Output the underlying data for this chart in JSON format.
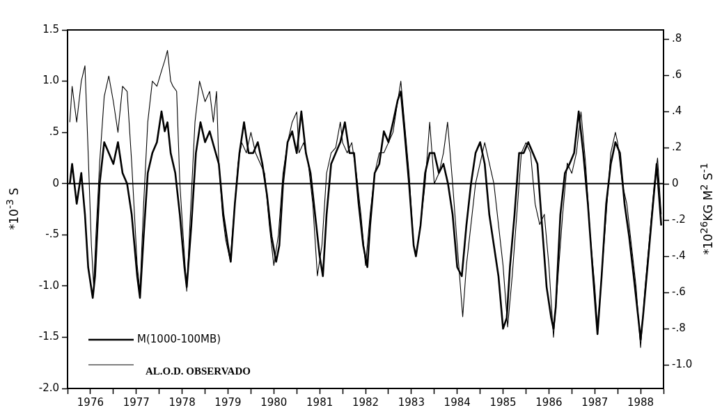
{
  "chart_data": {
    "type": "line",
    "ylabel": "*10$^{-3}$ S",
    "y2label": "*10$^{26}$KG M$^{2}$ S$^{-1}$",
    "xlim": [
      1976,
      1989
    ],
    "xticks": [
      {
        "value": 1976,
        "label": null
      },
      {
        "value": 1976.5,
        "label": "1976"
      },
      {
        "value": 1977,
        "label": null
      },
      {
        "value": 1977.5,
        "label": "1977"
      },
      {
        "value": 1978,
        "label": null
      },
      {
        "value": 1978.5,
        "label": "1978"
      },
      {
        "value": 1979,
        "label": null
      },
      {
        "value": 1979.5,
        "label": "1979"
      },
      {
        "value": 1980,
        "label": null
      },
      {
        "value": 1980.5,
        "label": "1980"
      },
      {
        "value": 1981,
        "label": null
      },
      {
        "value": 1981.5,
        "label": "1981"
      },
      {
        "value": 1982,
        "label": null
      },
      {
        "value": 1982.5,
        "label": "1982"
      },
      {
        "value": 1983,
        "label": null
      },
      {
        "value": 1983.5,
        "label": "1983"
      },
      {
        "value": 1984,
        "label": null
      },
      {
        "value": 1984.5,
        "label": "1984"
      },
      {
        "value": 1985,
        "label": null
      },
      {
        "value": 1985.5,
        "label": "1985"
      },
      {
        "value": 1986,
        "label": null
      },
      {
        "value": 1986.5,
        "label": "1986"
      },
      {
        "value": 1987,
        "label": null
      },
      {
        "value": 1987.5,
        "label": "1987"
      },
      {
        "value": 1988,
        "label": null
      },
      {
        "value": 1988.5,
        "label": "1988"
      },
      {
        "value": 1989,
        "label": null
      }
    ],
    "ylim": [
      -2.0,
      1.5
    ],
    "yticks": [
      {
        "value": -2.0,
        "label": "-2.0"
      },
      {
        "value": -1.5,
        "label": "-1.5"
      },
      {
        "value": -1.0,
        "label": "-1.0"
      },
      {
        "value": -0.5,
        "label": "-.5"
      },
      0,
      {
        "value": 0.5,
        "label": ".5"
      },
      {
        "value": 1.0,
        "label": "1.0"
      },
      {
        "value": 1.5,
        "label": "1.5"
      }
    ],
    "y2lim": [
      -1.13,
      0.85
    ],
    "y2ticks": [
      {
        "value": -1.0,
        "label": "-1.0"
      },
      {
        "value": -0.8,
        "label": "-.8"
      },
      {
        "value": -0.6,
        "label": "-.6"
      },
      {
        "value": -0.4,
        "label": "-.4"
      },
      {
        "value": -0.2,
        "label": "-.2"
      },
      0,
      {
        "value": 0.2,
        "label": ".2"
      },
      {
        "value": 0.4,
        "label": ".4"
      },
      {
        "value": 0.6,
        "label": ".6"
      },
      {
        "value": 0.8,
        "label": ".8"
      }
    ],
    "grid": false,
    "legend": "bottom left",
    "marker": "none",
    "line_style": "solid",
    "ref_lines": [
      {
        "axis": "y",
        "value": 0,
        "color": "#000000"
      }
    ],
    "series": [
      {
        "name": "M(1000-100MB)",
        "color": "#000000",
        "axis": "y2",
        "x": [
          1976.05,
          1976.1,
          1976.2,
          1976.3,
          1976.38,
          1976.45,
          1976.55,
          1976.6,
          1976.7,
          1976.8,
          1976.9,
          1977.0,
          1977.1,
          1977.2,
          1977.3,
          1977.4,
          1977.52,
          1977.58,
          1977.66,
          1977.75,
          1977.85,
          1977.95,
          1978.05,
          1978.12,
          1978.18,
          1978.25,
          1978.35,
          1978.45,
          1978.55,
          1978.6,
          1978.7,
          1978.8,
          1978.9,
          1979.0,
          1979.1,
          1979.2,
          1979.3,
          1979.4,
          1979.5,
          1979.56,
          1979.65,
          1979.75,
          1979.85,
          1979.95,
          1980.05,
          1980.15,
          1980.25,
          1980.35,
          1980.45,
          1980.55,
          1980.62,
          1980.7,
          1980.8,
          1980.9,
          1981.0,
          1981.1,
          1981.2,
          1981.3,
          1981.4,
          1981.5,
          1981.57,
          1981.65,
          1981.75,
          1981.85,
          1981.95,
          1982.05,
          1982.15,
          1982.25,
          1982.35,
          1982.45,
          1982.54,
          1982.6,
          1982.7,
          1982.8,
          1982.9,
          1983.0,
          1983.1,
          1983.2,
          1983.27,
          1983.35,
          1983.45,
          1983.55,
          1983.6,
          1983.7,
          1983.8,
          1983.9,
          1984.0,
          1984.1,
          1984.2,
          1984.3,
          1984.4,
          1984.5,
          1984.6,
          1984.7,
          1984.8,
          1984.9,
          1985.0,
          1985.1,
          1985.2,
          1985.3,
          1985.4,
          1985.5,
          1985.58,
          1985.65,
          1985.75,
          1985.85,
          1985.95,
          1986.05,
          1986.15,
          1986.25,
          1986.35,
          1986.45,
          1986.55,
          1986.6,
          1986.65,
          1986.75,
          1986.85,
          1986.95,
          1987.05,
          1987.15,
          1987.25,
          1987.35,
          1987.45,
          1987.5,
          1987.56,
          1987.65,
          1987.75,
          1987.85,
          1987.95,
          1988.05,
          1988.15,
          1988.25,
          1988.35,
          1988.45,
          1988.5,
          1988.55,
          1988.65,
          1988.75,
          1988.85,
          1988.95
        ],
        "values": [
          0,
          0.11,
          -0.11,
          0.06,
          -0.17,
          -0.46,
          -0.63,
          -0.51,
          0,
          0.23,
          0.17,
          0.11,
          0.23,
          0.06,
          0,
          -0.17,
          -0.51,
          -0.63,
          -0.29,
          0.06,
          0.17,
          0.23,
          0.4,
          0.29,
          0.34,
          0.17,
          0.06,
          -0.17,
          -0.46,
          -0.57,
          -0.23,
          0.17,
          0.34,
          0.23,
          0.29,
          0.2,
          0.11,
          -0.17,
          -0.34,
          -0.43,
          -0.11,
          0.17,
          0.34,
          0.17,
          0.17,
          0.23,
          0.11,
          -0.06,
          -0.29,
          -0.43,
          -0.34,
          0,
          0.23,
          0.29,
          0.17,
          0.4,
          0.17,
          0.06,
          -0.17,
          -0.4,
          -0.51,
          -0.17,
          0.11,
          0.17,
          0.23,
          0.34,
          0.17,
          0.17,
          -0.11,
          -0.34,
          -0.46,
          -0.23,
          0.06,
          0.11,
          0.29,
          0.23,
          0.34,
          0.46,
          0.51,
          0.29,
          0,
          -0.34,
          -0.4,
          -0.23,
          0.06,
          0.17,
          0.17,
          0.06,
          0.11,
          0,
          -0.17,
          -0.46,
          -0.51,
          -0.23,
          0,
          0.17,
          0.23,
          0.11,
          -0.17,
          -0.34,
          -0.51,
          -0.8,
          -0.74,
          -0.46,
          -0.17,
          0.17,
          0.17,
          0.23,
          0.17,
          0.11,
          -0.23,
          -0.57,
          -0.74,
          -0.8,
          -0.68,
          -0.17,
          0.06,
          0.11,
          0.17,
          0.4,
          0.17,
          -0.11,
          -0.46,
          -0.63,
          -0.83,
          -0.51,
          -0.11,
          0.11,
          0.23,
          0.17,
          -0.11,
          -0.29,
          -0.51,
          -0.74,
          -0.86,
          -0.74,
          -0.46,
          -0.17,
          0.11,
          -0.23
        ]
      },
      {
        "name": "AL.O.D. OBSERVADO",
        "color": "#000000",
        "x": [
          1976.05,
          1976.1,
          1976.2,
          1976.3,
          1976.38,
          1976.45,
          1976.52,
          1976.57,
          1976.62,
          1976.7,
          1976.8,
          1976.9,
          1977.0,
          1977.1,
          1977.2,
          1977.3,
          1977.4,
          1977.52,
          1977.58,
          1977.66,
          1977.75,
          1977.85,
          1977.95,
          1978.05,
          1978.12,
          1978.18,
          1978.25,
          1978.3,
          1978.38,
          1978.45,
          1978.55,
          1978.6,
          1978.68,
          1978.78,
          1978.88,
          1979.0,
          1979.1,
          1979.18,
          1979.25,
          1979.3,
          1979.38,
          1979.45,
          1979.55,
          1979.63,
          1979.72,
          1979.8,
          1979.9,
          1980.0,
          1980.1,
          1980.2,
          1980.3,
          1980.4,
          1980.5,
          1980.6,
          1980.7,
          1980.8,
          1980.9,
          1981.0,
          1981.05,
          1981.15,
          1981.25,
          1981.35,
          1981.45,
          1981.55,
          1981.65,
          1981.75,
          1981.85,
          1981.95,
          1982.0,
          1982.1,
          1982.2,
          1982.3,
          1982.4,
          1982.5,
          1982.6,
          1982.7,
          1982.8,
          1982.9,
          1983.0,
          1983.1,
          1983.2,
          1983.27,
          1983.35,
          1983.45,
          1983.55,
          1983.6,
          1983.7,
          1983.8,
          1983.9,
          1984.0,
          1984.1,
          1984.2,
          1984.29,
          1984.4,
          1984.5,
          1984.62,
          1984.7,
          1984.8,
          1984.9,
          1985.0,
          1985.1,
          1985.2,
          1985.3,
          1985.4,
          1985.5,
          1985.6,
          1985.7,
          1985.8,
          1985.9,
          1986.0,
          1986.1,
          1986.2,
          1986.3,
          1986.4,
          1986.5,
          1986.6,
          1986.7,
          1986.8,
          1986.9,
          1987.0,
          1987.1,
          1987.2,
          1987.3,
          1987.4,
          1987.5,
          1987.56,
          1987.65,
          1987.75,
          1987.85,
          1987.95,
          1988.0,
          1988.1,
          1988.2,
          1988.3,
          1988.4,
          1988.5,
          1988.6,
          1988.7,
          1988.8,
          1988.87,
          1988.95
        ],
        "values": [
          0.6,
          0.95,
          0.6,
          1.0,
          1.15,
          0.3,
          -0.6,
          -1.0,
          -0.5,
          0.2,
          0.85,
          1.05,
          0.8,
          0.5,
          0.95,
          0.9,
          0.2,
          -0.8,
          -1.05,
          -0.2,
          0.6,
          1.0,
          0.95,
          1.1,
          1.2,
          1.3,
          1.0,
          0.95,
          0.9,
          0.0,
          -0.7,
          -1.05,
          -0.3,
          0.6,
          1.0,
          0.8,
          0.9,
          0.6,
          0.9,
          0.2,
          -0.3,
          -0.55,
          -0.75,
          -0.3,
          0.2,
          0.4,
          0.3,
          0.5,
          0.3,
          0.2,
          0.1,
          -0.4,
          -0.8,
          -0.5,
          0.1,
          0.4,
          0.6,
          0.7,
          0.3,
          0.4,
          0.2,
          -0.2,
          -0.9,
          -0.6,
          0.1,
          0.3,
          0.35,
          0.6,
          0.4,
          0.3,
          0.4,
          0.1,
          -0.3,
          -0.8,
          -0.3,
          0.1,
          0.3,
          0.3,
          0.4,
          0.5,
          0.8,
          1.0,
          0.6,
          0.1,
          -0.6,
          -0.7,
          -0.4,
          0.0,
          0.6,
          0.0,
          0.1,
          0.3,
          0.6,
          0.0,
          -0.6,
          -1.3,
          -0.8,
          -0.4,
          0.0,
          0.2,
          0.4,
          0.2,
          0.0,
          -0.4,
          -0.8,
          -1.4,
          -0.9,
          -0.3,
          0.3,
          0.4,
          0.3,
          -0.2,
          -0.4,
          -0.3,
          -0.8,
          -1.5,
          -0.9,
          -0.3,
          0.2,
          0.1,
          0.3,
          0.7,
          0.2,
          -0.5,
          -1.0,
          -1.4,
          -0.9,
          -0.3,
          0.3,
          0.5,
          0.4,
          0.0,
          -0.2,
          -0.6,
          -1.0,
          -1.6,
          -1.0,
          -0.5,
          0.0,
          0.25,
          -0.3
        ]
      }
    ]
  }
}
